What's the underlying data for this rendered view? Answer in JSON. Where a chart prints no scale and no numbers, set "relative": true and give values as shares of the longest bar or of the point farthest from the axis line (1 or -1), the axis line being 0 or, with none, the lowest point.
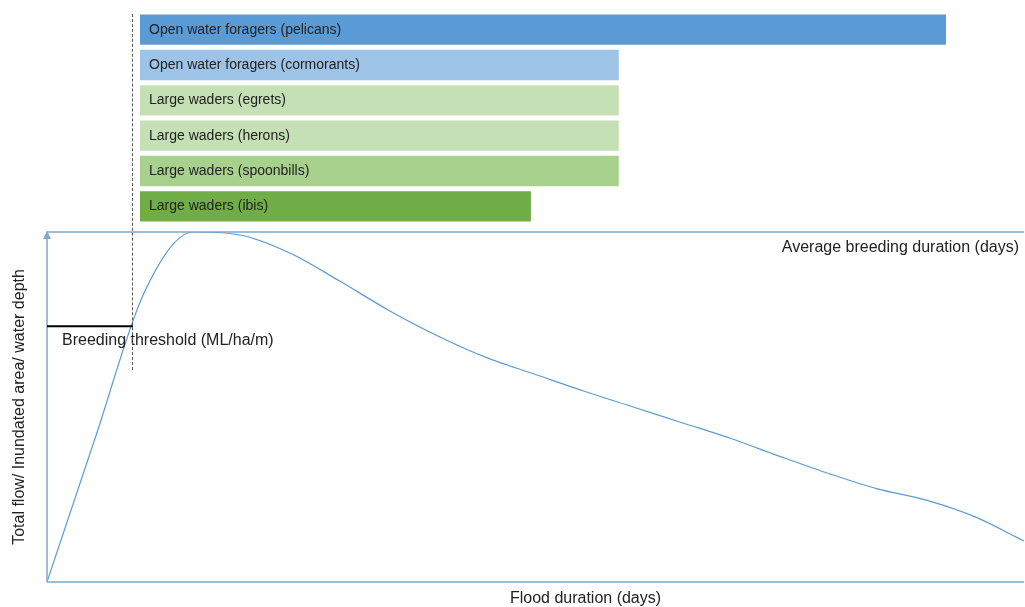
{
  "chart_data": [
    {
      "type": "bar",
      "orientation": "horizontal",
      "relative": true,
      "xlabel": "Average breeding duration (days)",
      "categories": [
        "Open water foragers (pelicans)",
        "Open water foragers (cormorants)",
        "Large waders (egrets)",
        "Large waders (herons)",
        "Large waders (spoonbills)",
        "Large waders (ibis)"
      ],
      "values": [
        1,
        0.594,
        0.594,
        0.594,
        0.594,
        0.485
      ],
      "colors": [
        "#5b9bd5",
        "#9dc3e6",
        "#c5e0b4",
        "#c5e0b4",
        "#a9d18e",
        "#70ad47"
      ]
    },
    {
      "type": "line",
      "relative": true,
      "xlabel": "Flood duration (days)",
      "ylabel": "Total flow/ Inundated area/ water depth",
      "color": "#5b9bd5",
      "marker": "none",
      "categories": [
        null,
        null,
        null,
        null,
        null,
        null,
        null,
        null,
        null,
        null,
        null,
        null,
        null,
        null,
        null,
        null,
        null,
        null,
        null,
        null,
        null
      ],
      "values": [
        0,
        0.417,
        0.83,
        1,
        0.99,
        0.938,
        0.859,
        0.776,
        0.703,
        0.641,
        0.593,
        0.545,
        0.5,
        0.455,
        0.41,
        0.359,
        0.31,
        0.266,
        0.234,
        0.186,
        0.117
      ],
      "ref_lines": [
        {
          "axis": "y",
          "value": 0.731,
          "label": "Breeding threshold (ML/ha/m)",
          "color": "#000000"
        }
      ]
    }
  ]
}
